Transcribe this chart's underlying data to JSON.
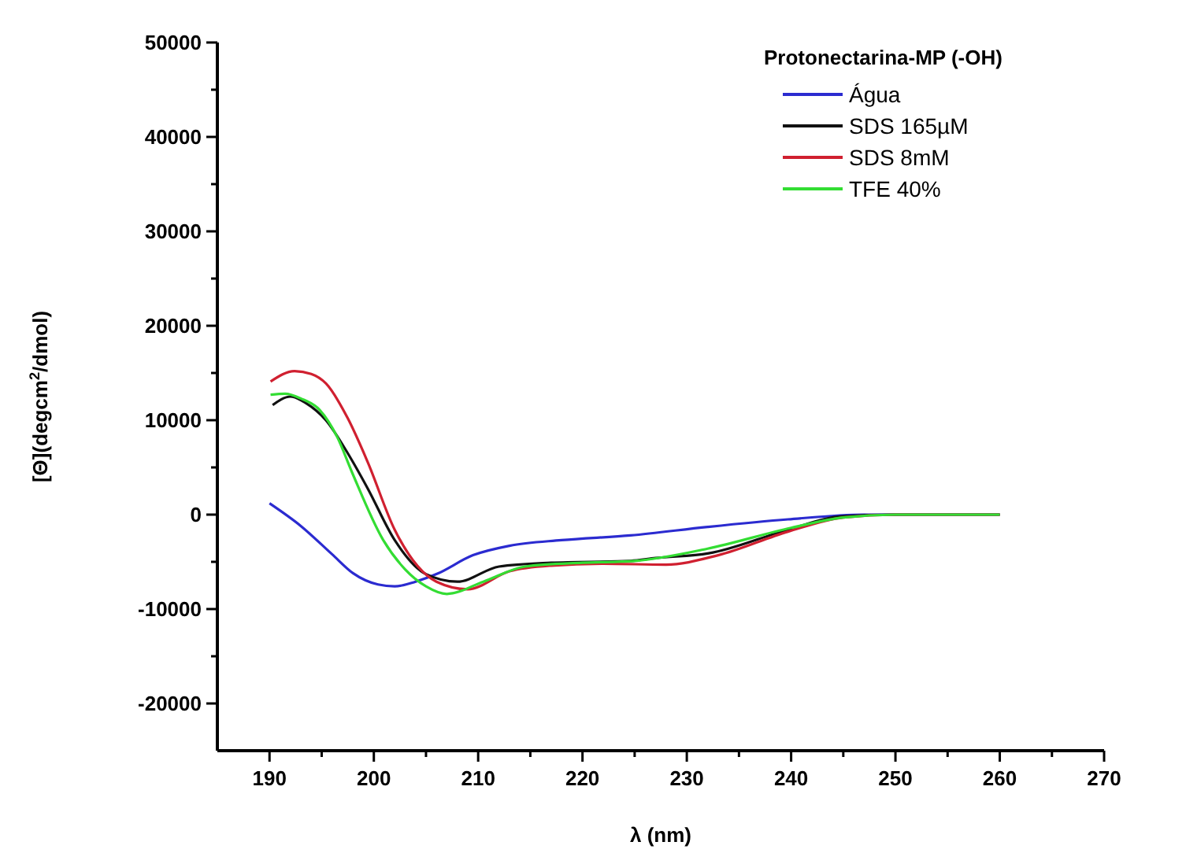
{
  "chart_data": {
    "type": "line",
    "xlabel": "λ (nm)",
    "ylabel": "[Θ](degcm$^{2}$/dmol)",
    "legend_title": "Protonectarina-MP (-OH)",
    "legend": "top right",
    "grid": false,
    "xlim": [
      185,
      270
    ],
    "xticks": [
      190,
      {
        "value": 195,
        "label": null
      },
      200,
      {
        "value": 205,
        "label": null
      },
      210,
      {
        "value": 215,
        "label": null
      },
      220,
      {
        "value": 225,
        "label": null
      },
      230,
      {
        "value": 235,
        "label": null
      },
      240,
      {
        "value": 245,
        "label": null
      },
      250,
      {
        "value": 255,
        "label": null
      },
      260,
      {
        "value": 265,
        "label": null
      },
      270
    ],
    "ylim": [
      -25000,
      50000
    ],
    "yticks": [
      -20000,
      {
        "value": -15000,
        "label": null
      },
      -10000,
      {
        "value": -5000,
        "label": null
      },
      0,
      {
        "value": 5000,
        "label": null
      },
      10000,
      {
        "value": 15000,
        "label": null
      },
      20000,
      {
        "value": 25000,
        "label": null
      },
      30000,
      {
        "value": 35000,
        "label": null
      },
      40000,
      {
        "value": 45000,
        "label": null
      },
      50000
    ],
    "series": [
      {
        "name": "Água",
        "color": "#2b2bd0",
        "x": [
          190,
          193,
          196,
          198,
          200.4,
          202,
          204,
          206,
          209.5,
          213,
          218,
          224.6,
          232,
          239.7,
          247,
          253,
          260
        ],
        "values": [
          1200,
          -1200,
          -4200,
          -6200,
          -7400,
          -7600,
          -7100,
          -6300,
          -4300,
          -3300,
          -2700,
          -2200,
          -1300,
          -500,
          0,
          0,
          0
        ]
      },
      {
        "name": "SDS 165µM",
        "color": "#111111",
        "x": [
          190.3,
          192,
          193.5,
          195.4,
          197.5,
          199.4,
          202,
          205,
          208,
          212,
          217,
          224.6,
          227,
          232.1,
          239.7,
          244.7,
          250,
          260
        ],
        "values": [
          11600,
          12500,
          11800,
          10000,
          6500,
          2800,
          -2700,
          -6300,
          -7100,
          -5500,
          -5100,
          -4900,
          -4600,
          -4100,
          -1600,
          -200,
          0,
          0
        ]
      },
      {
        "name": "SDS 8mM",
        "color": "#d02030",
        "x": [
          190.1,
          192.4,
          194,
          195.4,
          197.5,
          199.4,
          202,
          206,
          209,
          213,
          217,
          222,
          228,
          233,
          239.7,
          245,
          250,
          260
        ],
        "values": [
          14100,
          15200,
          14900,
          13900,
          10200,
          5600,
          -1600,
          -7100,
          -7900,
          -6000,
          -5400,
          -5200,
          -5300,
          -4300,
          -1800,
          -300,
          0,
          0
        ]
      },
      {
        "name": "TFE 40%",
        "color": "#33dd33",
        "x": [
          190.1,
          191.5,
          193,
          194.8,
          196.5,
          197.9,
          200.9,
          203,
          205,
          207,
          210.5,
          214.5,
          220,
          225,
          232,
          240,
          245,
          250,
          260
        ],
        "values": [
          12700,
          12800,
          12300,
          11100,
          8200,
          4500,
          -2700,
          -5800,
          -7600,
          -8400,
          -7100,
          -5500,
          -5100,
          -4900,
          -3600,
          -1400,
          -300,
          0,
          0
        ]
      }
    ]
  }
}
